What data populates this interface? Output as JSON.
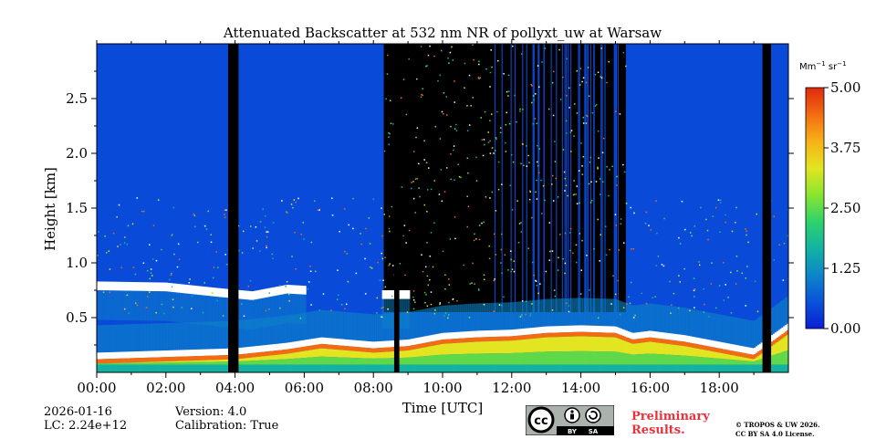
{
  "chart_data": {
    "type": "heatmap",
    "title": "Attenuated Backscatter at 532 nm NR of pollyxt_uw at Warsaw",
    "xlabel": "Time [UTC]",
    "ylabel": "Height [km]",
    "xlim": [
      0,
      20
    ],
    "ylim": [
      0,
      3
    ],
    "xticks": [
      0,
      2,
      4,
      6,
      8,
      10,
      12,
      14,
      16,
      18
    ],
    "xtick_labels": [
      "00:00",
      "02:00",
      "04:00",
      "06:00",
      "08:00",
      "10:00",
      "12:00",
      "14:00",
      "16:00",
      "18:00"
    ],
    "yticks": [
      0.5,
      1.0,
      1.5,
      2.0,
      2.5
    ],
    "ytick_labels": [
      "0.5",
      "1.0",
      "1.5",
      "2.0",
      "2.5"
    ],
    "colorbar": {
      "unit_main": "Mm",
      "unit_exp1": "−1",
      "unit_mid": " sr",
      "unit_exp2": "−1",
      "range": [
        0.0,
        5.0
      ],
      "ticks": [
        0.0,
        1.25,
        2.5,
        3.75,
        5.0
      ],
      "tick_labels": [
        "0.00",
        "1.25",
        "2.50",
        "3.75",
        "5.00"
      ],
      "colormap": [
        "#0b1fd4",
        "#0a52d8",
        "#0d86c9",
        "#12b3a3",
        "#2fd26a",
        "#8ae530",
        "#e3e521",
        "#f7b117",
        "#f36b12",
        "#de2a0d"
      ]
    },
    "no_data_periods_hours": [
      [
        3.8,
        4.1
      ],
      [
        8.6,
        8.75
      ],
      [
        19.25,
        19.5
      ]
    ],
    "boundary_layer_top_km": [
      [
        0,
        0.18
      ],
      [
        2,
        0.2
      ],
      [
        4,
        0.22
      ],
      [
        5.5,
        0.27
      ],
      [
        6.5,
        0.32
      ],
      [
        8,
        0.28
      ],
      [
        9,
        0.3
      ],
      [
        10,
        0.36
      ],
      [
        11,
        0.38
      ],
      [
        12,
        0.39
      ],
      [
        13,
        0.42
      ],
      [
        14,
        0.43
      ],
      [
        15,
        0.42
      ],
      [
        15.5,
        0.36
      ],
      [
        16,
        0.38
      ],
      [
        17,
        0.34
      ],
      [
        18,
        0.28
      ],
      [
        19,
        0.22
      ],
      [
        20,
        0.45
      ]
    ],
    "cloud_layer_km": [
      [
        0,
        0.78
      ],
      [
        2,
        0.77
      ],
      [
        3.5,
        0.72
      ],
      [
        4.5,
        0.69
      ],
      [
        5.5,
        0.75
      ],
      [
        8.2,
        0.7
      ],
      [
        9,
        0.7
      ]
    ],
    "background_dark_period_hours": [
      8.3,
      15.3
    ],
    "colors": {
      "low_background": "#0a4ad8",
      "no_data": "#000000",
      "cloud": "#ffffff"
    }
  },
  "footer": {
    "date": "2026-01-16",
    "lc": "LC: 2.24e+12",
    "version": "Version: 4.0",
    "calibration": "Calibration: True",
    "preliminary_line1": "Preliminary",
    "preliminary_line2": "Results.",
    "copyright_line1": "© TROPOS & UW 2026.",
    "copyright_line2": "CC BY SA 4.0 License.",
    "cc_logo_text": "cc",
    "cc_by": "BY",
    "cc_sa": "SA"
  }
}
